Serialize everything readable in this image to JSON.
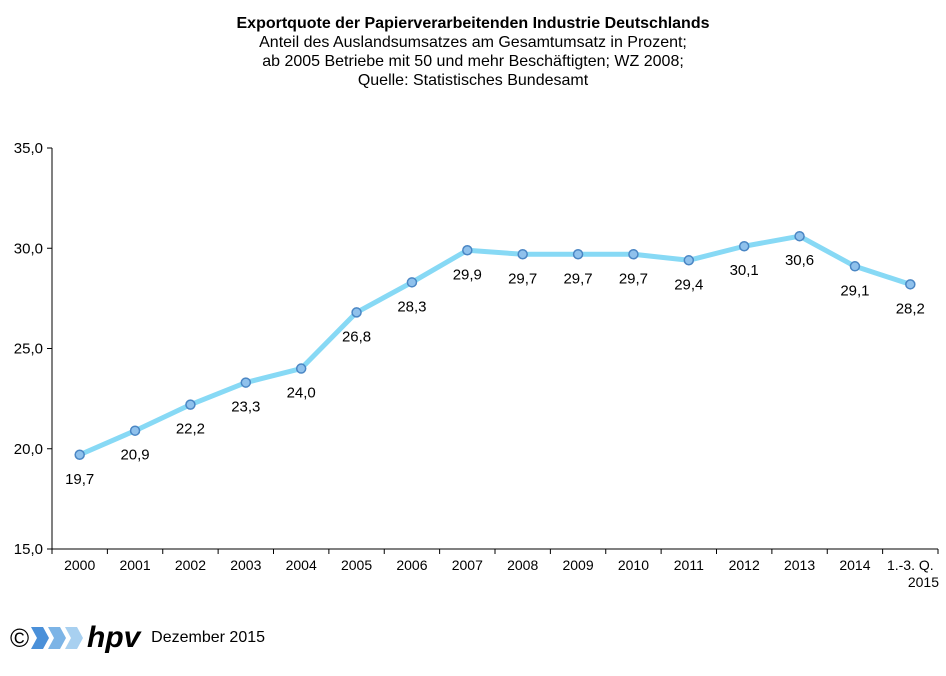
{
  "chart_data": {
    "type": "line",
    "title": "Exportquote der Papierverarbeitenden Industrie Deutschlands",
    "subtitle": [
      "Anteil des Auslandsumsatzes  am Gesamtumsatz in Prozent;",
      "ab 2005 Betriebe mit 50 und mehr Beschäftigten; WZ 2008;",
      "Quelle: Statistisches Bundesamt"
    ],
    "categories": [
      "2000",
      "2001",
      "2002",
      "2003",
      "2004",
      "2005",
      "2006",
      "2007",
      "2008",
      "2009",
      "2010",
      "2011",
      "2012",
      "2013",
      "2014",
      "1.-3. Q. 2015"
    ],
    "category_labels": [
      [
        "2000"
      ],
      [
        "2001"
      ],
      [
        "2002"
      ],
      [
        "2003"
      ],
      [
        "2004"
      ],
      [
        "2005"
      ],
      [
        "2006"
      ],
      [
        "2007"
      ],
      [
        "2008"
      ],
      [
        "2009"
      ],
      [
        "2010"
      ],
      [
        "2011"
      ],
      [
        "2012"
      ],
      [
        "2013"
      ],
      [
        "2014"
      ],
      [
        "1.-3. Q.",
        "2015"
      ]
    ],
    "values": [
      19.7,
      20.9,
      22.2,
      23.3,
      24.0,
      26.8,
      28.3,
      29.9,
      29.7,
      29.7,
      29.7,
      29.4,
      30.1,
      30.6,
      29.1,
      28.2
    ],
    "value_labels": [
      "19,7",
      "20,9",
      "22,2",
      "23,3",
      "24,0",
      "26,8",
      "28,3",
      "29,9",
      "29,7",
      "29,7",
      "29,7",
      "29,4",
      "30,1",
      "30,6",
      "29,1",
      "28,2"
    ],
    "y_ticks": [
      "15,0",
      "20,0",
      "25,0",
      "30,0",
      "35,0"
    ],
    "ylim": [
      15,
      35
    ],
    "grid": false,
    "legend": "none",
    "line_color": "#87d9f5",
    "marker_fill": "#8fc1ec",
    "marker_stroke": "#4a86c4"
  },
  "footer": {
    "copyright": "©",
    "logo_text": "hpv",
    "date": "Dezember 2015"
  }
}
